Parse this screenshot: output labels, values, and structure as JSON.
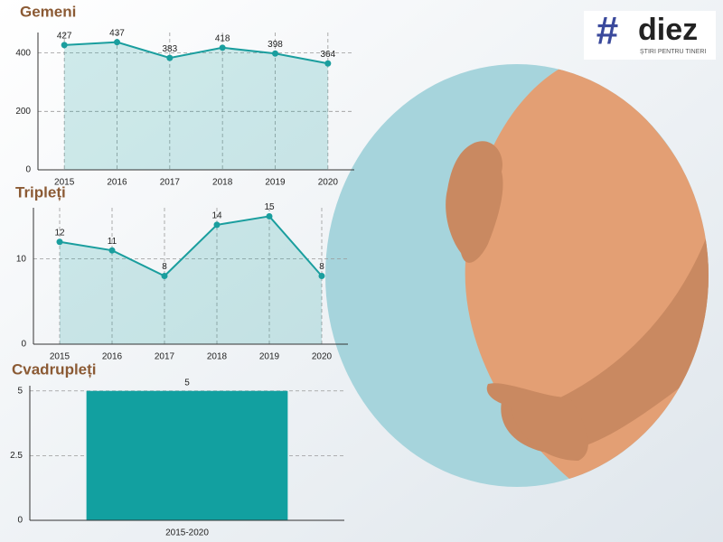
{
  "chart_data": [
    {
      "type": "line",
      "title": "Gemeni",
      "categories": [
        "2015",
        "2016",
        "2017",
        "2018",
        "2019",
        "2020"
      ],
      "values": [
        427,
        437,
        383,
        418,
        398,
        364
      ],
      "color": "#1a9e9e",
      "ylim": [
        0,
        470
      ],
      "yticks": [
        0,
        200,
        400
      ],
      "grid": "both"
    },
    {
      "type": "line",
      "title": "Tripleți",
      "categories": [
        "2015",
        "2016",
        "2017",
        "2018",
        "2019",
        "2020"
      ],
      "values": [
        12,
        11,
        8,
        14,
        15,
        8
      ],
      "color": "#1a9e9e",
      "ylim": [
        0,
        16
      ],
      "yticks": [
        0,
        10
      ],
      "grid": "both"
    },
    {
      "type": "bar",
      "title": "Cvadrupleți",
      "categories": [
        "2015-2020"
      ],
      "values": [
        5
      ],
      "color": "#12a0a0",
      "ylim": [
        0,
        5.2
      ],
      "yticks": [
        0,
        2.5,
        5
      ],
      "grid": "y"
    }
  ],
  "logo": {
    "name": "diez",
    "tagline": "ȘTIRI PENTRU TINERI"
  }
}
